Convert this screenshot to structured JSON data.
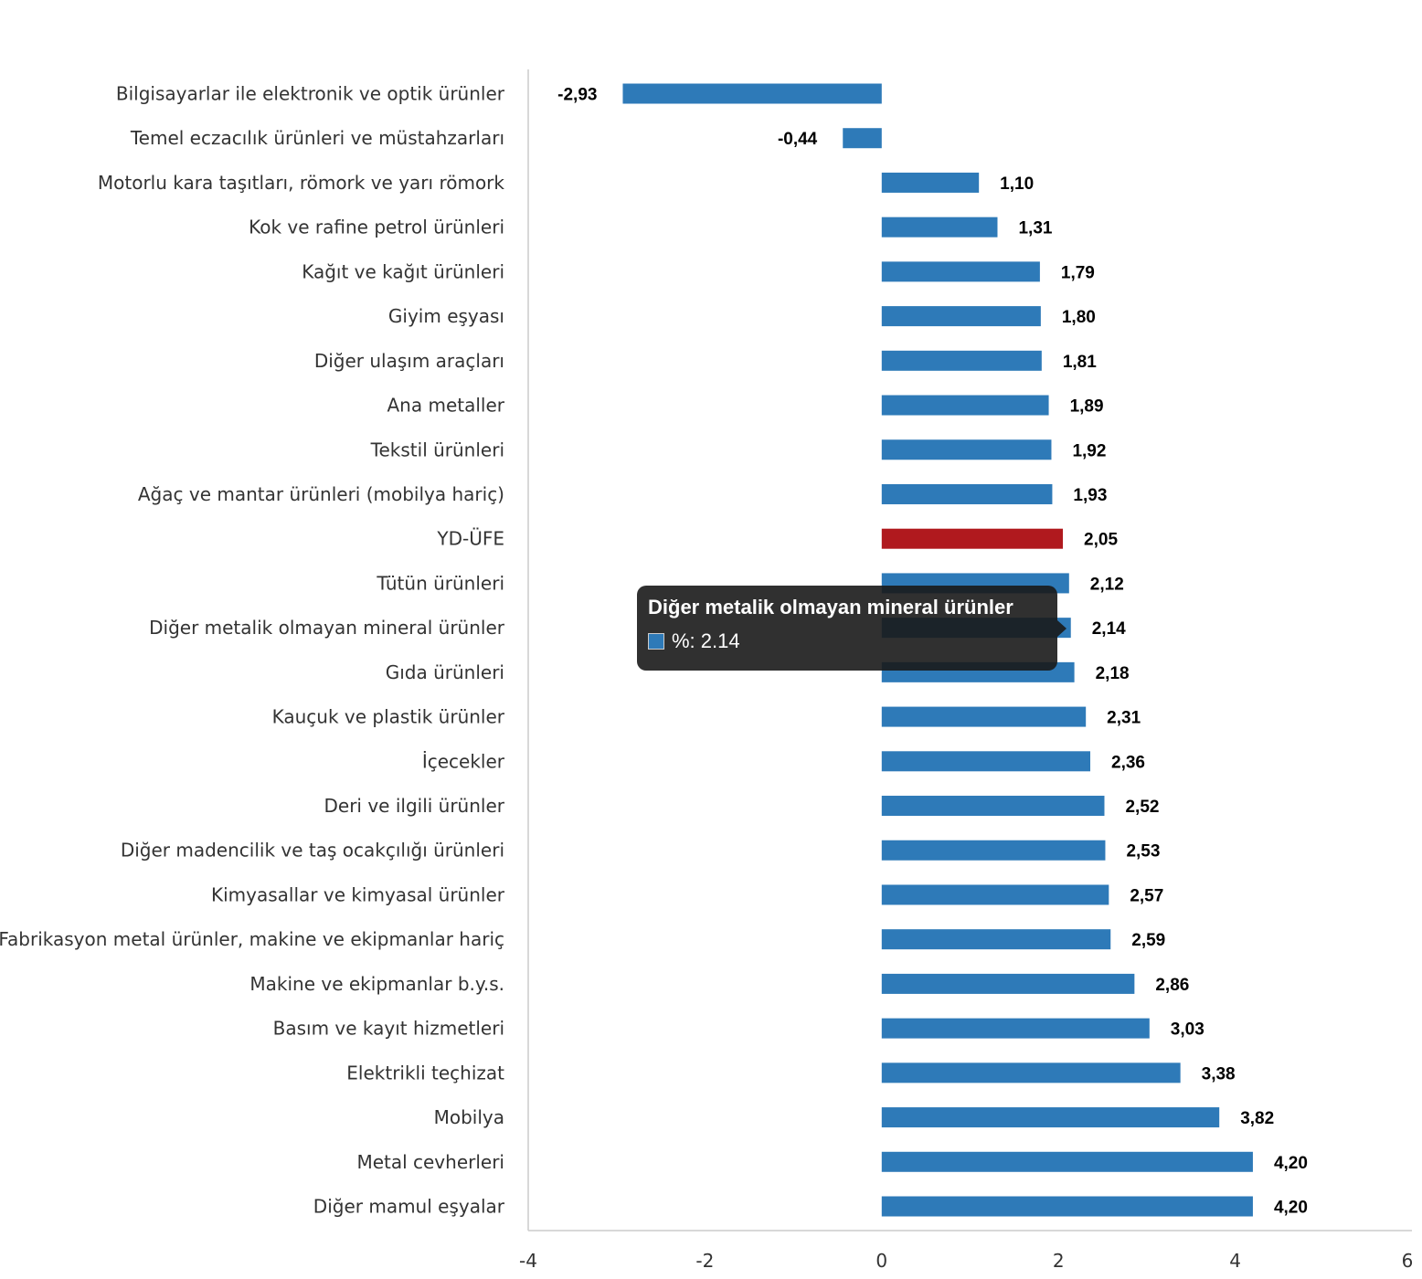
{
  "chart_data": {
    "type": "bar",
    "orientation": "horizontal",
    "categories": [
      "Bilgisayarlar ile elektronik ve optik ürünler",
      "Temel eczacılık ürünleri ve müstahzarları",
      "Motorlu kara taşıtları, römork ve yarı römork",
      "Kok ve rafine petrol ürünleri",
      "Kağıt ve kağıt ürünleri",
      "Giyim eşyası",
      "Diğer ulaşım araçları",
      "Ana metaller",
      "Tekstil ürünleri",
      "Ağaç ve mantar ürünleri (mobilya hariç)",
      "YD-ÜFE",
      "Tütün ürünleri",
      "Diğer metalik olmayan mineral ürünler",
      "Gıda ürünleri",
      "Kauçuk ve plastik ürünler",
      "İçecekler",
      "Deri ve ilgili ürünler",
      "Diğer madencilik ve taş ocakçılığı ürünleri",
      "Kimyasallar ve kimyasal ürünler",
      "Fabrikasyon metal ürünler, makine ve ekipmanlar hariç",
      "Makine ve ekipmanlar b.y.s.",
      "Basım ve kayıt hizmetleri",
      "Elektrikli teçhizat",
      "Mobilya",
      "Metal cevherleri",
      "Diğer mamul eşyalar"
    ],
    "values": [
      -2.93,
      -0.44,
      1.1,
      1.31,
      1.79,
      1.8,
      1.81,
      1.89,
      1.92,
      1.93,
      2.05,
      2.12,
      2.14,
      2.18,
      2.31,
      2.36,
      2.52,
      2.53,
      2.57,
      2.59,
      2.86,
      3.03,
      3.38,
      3.82,
      4.2,
      4.2
    ],
    "value_labels": [
      "-2,93",
      "-0,44",
      "1,10",
      "1,31",
      "1,79",
      "1,80",
      "1,81",
      "1,89",
      "1,92",
      "1,93",
      "2,05",
      "2,12",
      "2,14",
      "2,18",
      "2,31",
      "2,36",
      "2,52",
      "2,53",
      "2,57",
      "2,59",
      "2,86",
      "3,03",
      "3,38",
      "3,82",
      "4,20",
      "4,20"
    ],
    "highlight_category": "YD-ÜFE",
    "xlim": [
      -4,
      6
    ],
    "xticks": [
      "-4",
      "-2",
      "0",
      "2",
      "4",
      "6"
    ],
    "grid": false,
    "legend": "none",
    "title": "",
    "xlabel": "",
    "ylabel": ""
  },
  "colors": {
    "bar": "#2e7ab8",
    "highlight": "#b0191e",
    "axis": "#cccccc"
  },
  "tooltip": {
    "title": "Diğer metalik olmayan mineral ürünler",
    "row": "%: 2.14",
    "swatch_color": "#2e7ab8"
  }
}
